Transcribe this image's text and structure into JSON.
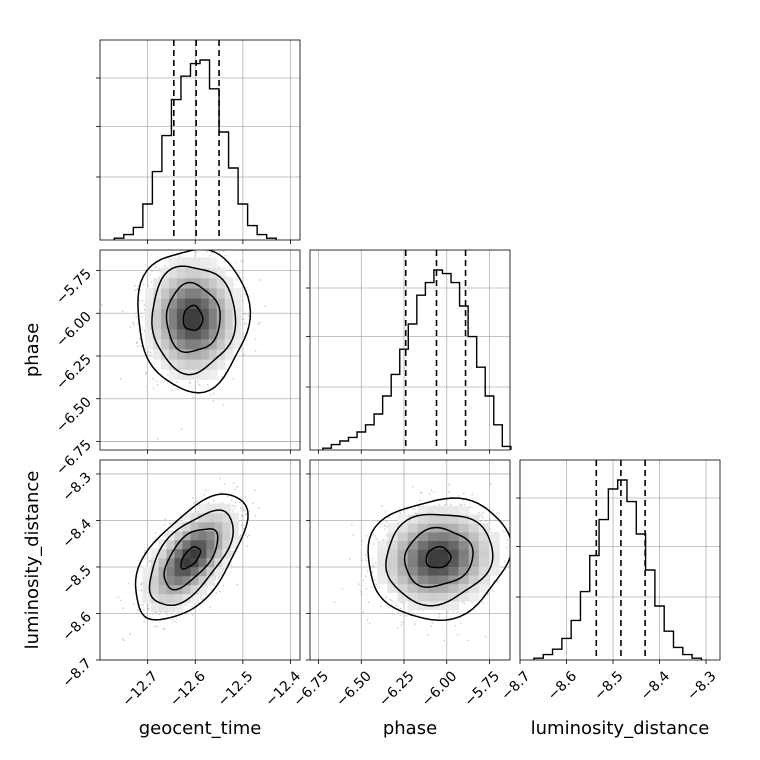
{
  "chart_data": {
    "type": "corner",
    "parameters": [
      {
        "name": "geocent_time",
        "ticks": [
          -12.7,
          -12.6,
          -12.5,
          -12.4
        ],
        "tick_labels": [
          "−12.7",
          "−12.6",
          "−12.5",
          "−12.4"
        ],
        "range": [
          -12.8,
          -12.38
        ],
        "quantiles": [
          -12.645,
          -12.598,
          -12.55
        ]
      },
      {
        "name": "phase",
        "ticks": [
          -6.75,
          -6.5,
          -6.25,
          -6.0,
          -5.75
        ],
        "tick_labels": [
          "−6.75",
          "−6.50",
          "−6.25",
          "−6.00",
          "−5.75"
        ],
        "range": [
          -6.8,
          -5.63
        ],
        "quantiles": [
          -6.24,
          -6.06,
          -5.89
        ]
      },
      {
        "name": "luminosity_distance",
        "ticks": [
          -8.7,
          -8.6,
          -8.5,
          -8.4,
          -8.3
        ],
        "tick_labels": [
          "−8.7",
          "−8.6",
          "−8.5",
          "−8.4",
          "−8.3"
        ],
        "range": [
          -8.7,
          -8.27
        ],
        "quantiles": [
          -8.536,
          -8.483,
          -8.431
        ]
      }
    ],
    "histograms": [
      {
        "parameter": "geocent_time",
        "bins": [
          -12.76,
          -12.74,
          -12.72,
          -12.7,
          -12.68,
          -12.66,
          -12.64,
          -12.62,
          -12.6,
          -12.58,
          -12.56,
          -12.54,
          -12.52,
          -12.5,
          -12.48,
          -12.46,
          -12.44
        ],
        "counts": [
          0.01,
          0.03,
          0.07,
          0.2,
          0.38,
          0.58,
          0.78,
          0.91,
          0.98,
          1.0,
          0.84,
          0.6,
          0.4,
          0.2,
          0.08,
          0.03,
          0.01
        ]
      },
      {
        "parameter": "phase",
        "bins": [
          -6.7,
          -6.65,
          -6.6,
          -6.55,
          -6.5,
          -6.45,
          -6.4,
          -6.35,
          -6.3,
          -6.25,
          -6.2,
          -6.15,
          -6.1,
          -6.05,
          -6.0,
          -5.95,
          -5.9,
          -5.85,
          -5.8,
          -5.75,
          -5.7,
          -5.65
        ],
        "counts": [
          0.01,
          0.03,
          0.05,
          0.07,
          0.1,
          0.14,
          0.2,
          0.3,
          0.42,
          0.56,
          0.7,
          0.86,
          0.93,
          1.0,
          0.98,
          0.93,
          0.8,
          0.63,
          0.46,
          0.3,
          0.14,
          0.02
        ]
      },
      {
        "parameter": "luminosity_distance",
        "bins": [
          -8.66,
          -8.64,
          -8.62,
          -8.6,
          -8.58,
          -8.56,
          -8.54,
          -8.52,
          -8.5,
          -8.48,
          -8.46,
          -8.44,
          -8.42,
          -8.4,
          -8.38,
          -8.36,
          -8.34,
          -8.32
        ],
        "counts": [
          0.01,
          0.03,
          0.06,
          0.12,
          0.22,
          0.38,
          0.58,
          0.78,
          0.95,
          1.0,
          0.88,
          0.7,
          0.5,
          0.3,
          0.16,
          0.07,
          0.03,
          0.01
        ]
      }
    ],
    "joint": [
      {
        "x": "geocent_time",
        "y": "phase",
        "center": [
          -12.605,
          -6.03
        ],
        "sigma": [
          0.045,
          0.16
        ],
        "rho": 0.0
      },
      {
        "x": "geocent_time",
        "y": "luminosity_distance",
        "center": [
          -12.61,
          -8.48
        ],
        "sigma": [
          0.045,
          0.052
        ],
        "rho": 0.6
      },
      {
        "x": "phase",
        "y": "luminosity_distance",
        "center": [
          -6.05,
          -8.48
        ],
        "sigma": [
          0.16,
          0.05
        ],
        "rho": 0.1
      }
    ],
    "grid": true,
    "xlabels": [
      "geocent_time",
      "phase",
      "luminosity_distance"
    ],
    "ylabels": [
      "phase",
      "luminosity_distance"
    ]
  }
}
